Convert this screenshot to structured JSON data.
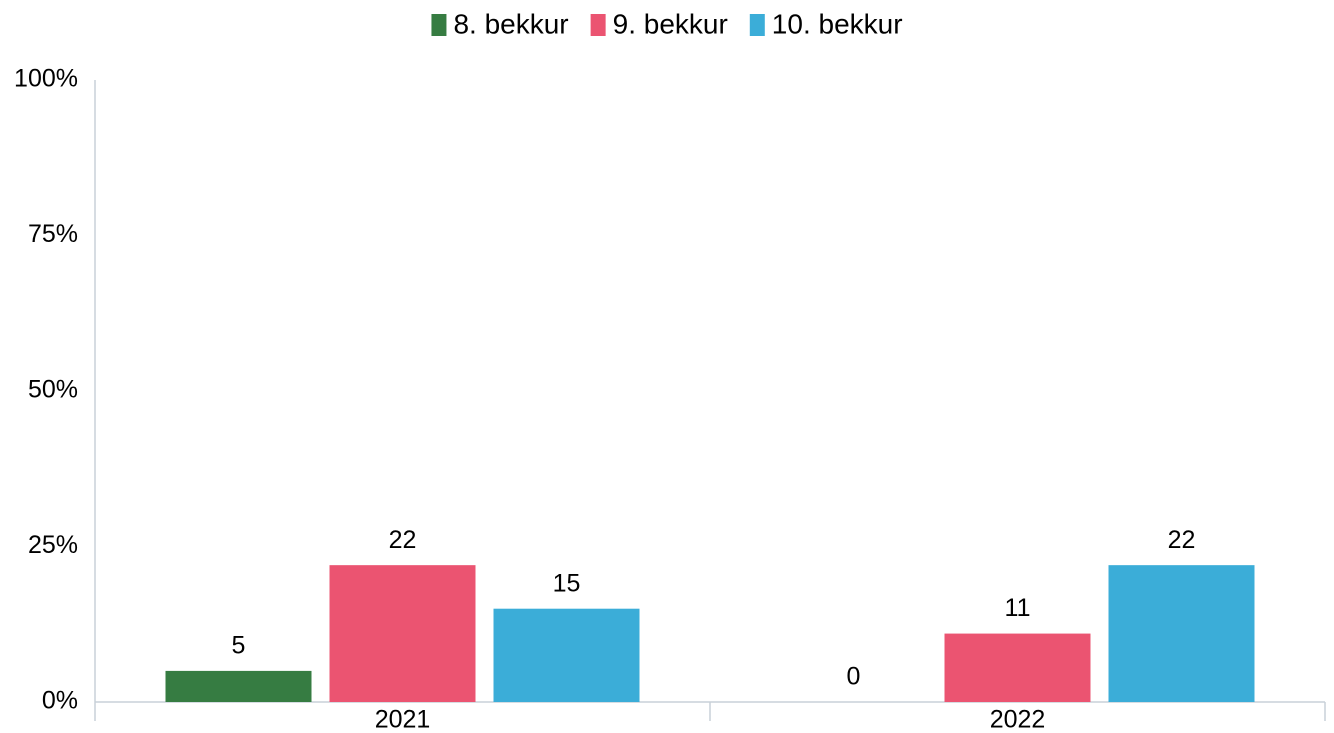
{
  "chart_data": {
    "type": "bar",
    "categories": [
      "2021",
      "2022"
    ],
    "series": [
      {
        "name": "8. bekkur",
        "color": "#367c42",
        "values": [
          5,
          0
        ]
      },
      {
        "name": "9. bekkur",
        "color": "#eb5471",
        "values": [
          22,
          11
        ]
      },
      {
        "name": "10. bekkur",
        "color": "#3badd8",
        "values": [
          15,
          22
        ]
      }
    ],
    "ylim": [
      0,
      100
    ],
    "yticks": [
      {
        "value": 0,
        "label": "0%"
      },
      {
        "value": 25,
        "label": "25%"
      },
      {
        "value": 50,
        "label": "50%"
      },
      {
        "value": 75,
        "label": "75%"
      },
      {
        "value": 100,
        "label": "100%"
      }
    ],
    "grid": false,
    "legend": "top"
  }
}
